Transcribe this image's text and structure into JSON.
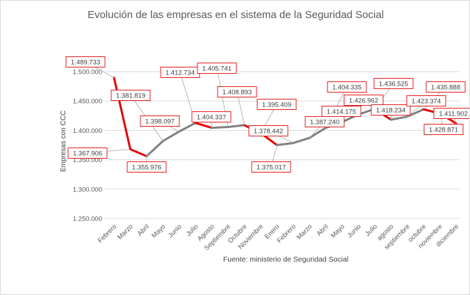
{
  "chart_data": {
    "type": "line",
    "title": "Evolución de las empresas en el sistema de la Seguridad Social",
    "ylabel": "Empresas con CCC",
    "xlabel": "",
    "source": "Fuente: ministerio de Seguridad Social",
    "ylim": [
      1250000,
      1500000
    ],
    "yticks": [
      "1.250.000",
      "1.300.000",
      "1.350.000",
      "1.400.000",
      "1.450.000",
      "1.500.000"
    ],
    "ytick_values": [
      1250000,
      1300000,
      1350000,
      1400000,
      1450000,
      1500000
    ],
    "grid": true,
    "legend": "none",
    "categories": [
      "Febrero",
      "Marzo",
      "Abril",
      "Mayo",
      "Junio",
      "Julio",
      "Agosto",
      "Septiembre",
      "Octubre",
      "Noviembre",
      "Enero",
      "Febrero",
      "Marzo",
      "Abril",
      "Mayo",
      "Junio",
      "Julio",
      "agosto",
      "septiembre",
      "octubre",
      "noviembre",
      "diciembre"
    ],
    "values": [
      1489733,
      1367906,
      1355976,
      1381819,
      1398097,
      1412734,
      1404337,
      1405741,
      1408893,
      1395409,
      1375017,
      1378442,
      1387240,
      1404335,
      1414175,
      1426962,
      1436525,
      1418234,
      1423374,
      1435888,
      1428871,
      1411902
    ],
    "data_labels": [
      "1.489.733",
      "1.367.906",
      "1.355.976",
      "1.381.819",
      "1.398.097",
      "1.412.734",
      "1.404.337",
      "1.405.741",
      "1.408.893",
      "1.395.409",
      "1.375.017",
      "1.378.442",
      "1.387.240",
      "1.404.335",
      "1.414.175",
      "1.426.962",
      "1.436.525",
      "1.418.234",
      "1.423.374",
      "1.435.888",
      "1.428.871",
      "1.411.902"
    ],
    "colors": {
      "line": "#7f7f7f",
      "decrease": "#e60000",
      "label_border": "#e31a1c",
      "grid": "#d9d9d9"
    }
  }
}
